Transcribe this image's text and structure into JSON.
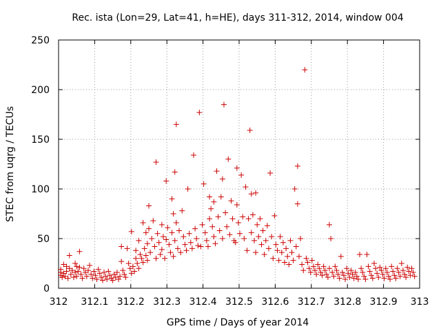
{
  "chart_data": {
    "type": "scatter",
    "title": "Rec. ista (Lon=29, Lat=41, h=HE), days 311-312, 2014, window 004",
    "xlabel": "GPS time / Days of year 2014",
    "ylabel": "STEC from uqrg / TECUs",
    "xlim": [
      312,
      313
    ],
    "ylim": [
      0,
      250
    ],
    "x_ticks": [
      312,
      312.1,
      312.2,
      312.3,
      312.4,
      312.5,
      312.6,
      312.7,
      312.8,
      312.9,
      313
    ],
    "x_tick_labels": [
      "312",
      "312.1",
      "312.2",
      "312.3",
      "312.4",
      "312.5",
      "312.6",
      "312.7",
      "312.8",
      "312.9",
      "313"
    ],
    "y_ticks": [
      0,
      50,
      100,
      150,
      200,
      250
    ],
    "y_tick_labels": [
      "0",
      "50",
      "100",
      "150",
      "200",
      "250"
    ],
    "marker": "plus",
    "color": "#cc0000",
    "grid": true,
    "series": [
      {
        "name": "STEC",
        "points": [
          [
            312.006,
            19
          ],
          [
            312.006,
            16
          ],
          [
            312.006,
            13
          ],
          [
            312.01,
            11
          ],
          [
            312.014,
            24
          ],
          [
            312.014,
            15
          ],
          [
            312.018,
            12
          ],
          [
            312.022,
            22
          ],
          [
            312.022,
            17
          ],
          [
            312.026,
            10
          ],
          [
            312.03,
            33
          ],
          [
            312.03,
            20
          ],
          [
            312.034,
            14
          ],
          [
            312.038,
            18
          ],
          [
            312.042,
            11
          ],
          [
            312.046,
            25
          ],
          [
            312.046,
            16
          ],
          [
            312.05,
            22
          ],
          [
            312.05,
            12
          ],
          [
            312.054,
            17
          ],
          [
            312.058,
            37
          ],
          [
            312.058,
            21
          ],
          [
            312.062,
            14
          ],
          [
            312.066,
            10
          ],
          [
            312.07,
            20
          ],
          [
            312.074,
            16
          ],
          [
            312.078,
            12
          ],
          [
            312.082,
            18
          ],
          [
            312.086,
            23
          ],
          [
            312.09,
            14
          ],
          [
            312.094,
            10
          ],
          [
            312.098,
            17
          ],
          [
            312.102,
            13
          ],
          [
            312.106,
            9
          ],
          [
            312.11,
            19
          ],
          [
            312.114,
            15
          ],
          [
            312.118,
            11
          ],
          [
            312.122,
            8
          ],
          [
            312.126,
            16
          ],
          [
            312.13,
            12
          ],
          [
            312.134,
            9
          ],
          [
            312.138,
            17
          ],
          [
            312.142,
            13
          ],
          [
            312.146,
            10
          ],
          [
            312.15,
            8
          ],
          [
            312.154,
            14
          ],
          [
            312.158,
            11
          ],
          [
            312.162,
            16
          ],
          [
            312.166,
            9
          ],
          [
            312.17,
            12
          ],
          [
            312.174,
            27
          ],
          [
            312.174,
            42
          ],
          [
            312.178,
            18
          ],
          [
            312.182,
            14
          ],
          [
            312.186,
            11
          ],
          [
            312.19,
            40
          ],
          [
            312.194,
            25
          ],
          [
            312.198,
            20
          ],
          [
            312.202,
            57
          ],
          [
            312.202,
            15
          ],
          [
            312.206,
            22
          ],
          [
            312.21,
            17
          ],
          [
            312.214,
            38
          ],
          [
            312.214,
            30
          ],
          [
            312.218,
            25
          ],
          [
            312.222,
            48
          ],
          [
            312.222,
            20
          ],
          [
            312.226,
            34
          ],
          [
            312.23,
            30
          ],
          [
            312.234,
            66
          ],
          [
            312.234,
            26
          ],
          [
            312.238,
            40
          ],
          [
            312.242,
            56
          ],
          [
            312.242,
            33
          ],
          [
            312.246,
            45
          ],
          [
            312.246,
            28
          ],
          [
            312.25,
            83
          ],
          [
            312.25,
            60
          ],
          [
            312.254,
            36
          ],
          [
            312.258,
            50
          ],
          [
            312.262,
            68
          ],
          [
            312.266,
            42
          ],
          [
            312.27,
            127
          ],
          [
            312.27,
            30
          ],
          [
            312.274,
            55
          ],
          [
            312.278,
            46
          ],
          [
            312.282,
            34
          ],
          [
            312.286,
            64
          ],
          [
            312.286,
            39
          ],
          [
            312.29,
            52
          ],
          [
            312.294,
            30
          ],
          [
            312.298,
            108
          ],
          [
            312.298,
            49
          ],
          [
            312.302,
            61
          ],
          [
            312.306,
            44
          ],
          [
            312.31,
            36
          ],
          [
            312.314,
            90
          ],
          [
            312.314,
            56
          ],
          [
            312.318,
            75
          ],
          [
            312.318,
            32
          ],
          [
            312.322,
            117
          ],
          [
            312.322,
            48
          ],
          [
            312.326,
            165
          ],
          [
            312.326,
            66
          ],
          [
            312.33,
            40
          ],
          [
            312.334,
            58
          ],
          [
            312.338,
            36
          ],
          [
            312.342,
            78
          ],
          [
            312.346,
            52
          ],
          [
            312.35,
            44
          ],
          [
            312.354,
            38
          ],
          [
            312.358,
            100
          ],
          [
            312.362,
            55
          ],
          [
            312.366,
            46
          ],
          [
            312.37,
            40
          ],
          [
            312.374,
            134
          ],
          [
            312.378,
            60
          ],
          [
            312.382,
            50
          ],
          [
            312.386,
            43
          ],
          [
            312.39,
            177
          ],
          [
            312.394,
            42
          ],
          [
            312.398,
            64
          ],
          [
            312.402,
            105
          ],
          [
            312.406,
            56
          ],
          [
            312.41,
            48
          ],
          [
            312.414,
            42
          ],
          [
            312.418,
            92
          ],
          [
            312.418,
            70
          ],
          [
            312.422,
            80
          ],
          [
            312.426,
            62
          ],
          [
            312.43,
            87
          ],
          [
            312.43,
            52
          ],
          [
            312.434,
            45
          ],
          [
            312.438,
            118
          ],
          [
            312.442,
            72
          ],
          [
            312.446,
            58
          ],
          [
            312.45,
            92
          ],
          [
            312.454,
            110
          ],
          [
            312.454,
            50
          ],
          [
            312.458,
            185
          ],
          [
            312.462,
            76
          ],
          [
            312.466,
            62
          ],
          [
            312.47,
            130
          ],
          [
            312.474,
            54
          ],
          [
            312.478,
            88
          ],
          [
            312.482,
            70
          ],
          [
            312.486,
            48
          ],
          [
            312.49,
            46
          ],
          [
            312.494,
            121
          ],
          [
            312.494,
            84
          ],
          [
            312.498,
            66
          ],
          [
            312.502,
            55
          ],
          [
            312.506,
            114
          ],
          [
            312.51,
            72
          ],
          [
            312.514,
            50
          ],
          [
            312.518,
            102
          ],
          [
            312.522,
            38
          ],
          [
            312.526,
            70
          ],
          [
            312.53,
            159
          ],
          [
            312.534,
            95
          ],
          [
            312.534,
            56
          ],
          [
            312.538,
            74
          ],
          [
            312.542,
            48
          ],
          [
            312.546,
            96
          ],
          [
            312.546,
            36
          ],
          [
            312.55,
            64
          ],
          [
            312.554,
            52
          ],
          [
            312.558,
            70
          ],
          [
            312.562,
            44
          ],
          [
            312.566,
            58
          ],
          [
            312.57,
            34
          ],
          [
            312.574,
            48
          ],
          [
            312.578,
            63
          ],
          [
            312.582,
            40
          ],
          [
            312.586,
            116
          ],
          [
            312.59,
            52
          ],
          [
            312.594,
            30
          ],
          [
            312.598,
            73
          ],
          [
            312.602,
            44
          ],
          [
            312.606,
            38
          ],
          [
            312.61,
            28
          ],
          [
            312.614,
            52
          ],
          [
            312.618,
            36
          ],
          [
            312.622,
            46
          ],
          [
            312.626,
            26
          ],
          [
            312.63,
            40
          ],
          [
            312.634,
            32
          ],
          [
            312.638,
            24
          ],
          [
            312.642,
            48
          ],
          [
            312.646,
            36
          ],
          [
            312.65,
            28
          ],
          [
            312.654,
            100
          ],
          [
            312.658,
            42
          ],
          [
            312.662,
            123
          ],
          [
            312.662,
            85
          ],
          [
            312.666,
            32
          ],
          [
            312.67,
            50
          ],
          [
            312.674,
            24
          ],
          [
            312.678,
            18
          ],
          [
            312.682,
            220
          ],
          [
            312.686,
            30
          ],
          [
            312.69,
            26
          ],
          [
            312.694,
            20
          ],
          [
            312.698,
            16
          ],
          [
            312.702,
            28
          ],
          [
            312.706,
            22
          ],
          [
            312.71,
            18
          ],
          [
            312.714,
            14
          ],
          [
            312.718,
            24
          ],
          [
            312.722,
            20
          ],
          [
            312.726,
            16
          ],
          [
            312.73,
            13
          ],
          [
            312.734,
            22
          ],
          [
            312.738,
            18
          ],
          [
            312.742,
            14
          ],
          [
            312.746,
            11
          ],
          [
            312.75,
            64
          ],
          [
            312.75,
            20
          ],
          [
            312.754,
            50
          ],
          [
            312.758,
            16
          ],
          [
            312.762,
            12
          ],
          [
            312.766,
            22
          ],
          [
            312.77,
            18
          ],
          [
            312.774,
            14
          ],
          [
            312.778,
            10
          ],
          [
            312.782,
            32
          ],
          [
            312.786,
            16
          ],
          [
            312.79,
            13
          ],
          [
            312.794,
            9
          ],
          [
            312.798,
            20
          ],
          [
            312.802,
            15
          ],
          [
            312.806,
            11
          ],
          [
            312.81,
            18
          ],
          [
            312.814,
            14
          ],
          [
            312.818,
            10
          ],
          [
            312.822,
            16
          ],
          [
            312.826,
            12
          ],
          [
            312.83,
            9
          ],
          [
            312.834,
            34
          ],
          [
            312.838,
            20
          ],
          [
            312.842,
            16
          ],
          [
            312.846,
            12
          ],
          [
            312.85,
            9
          ],
          [
            312.854,
            34
          ],
          [
            312.858,
            22
          ],
          [
            312.862,
            17
          ],
          [
            312.866,
            13
          ],
          [
            312.87,
            10
          ],
          [
            312.874,
            25
          ],
          [
            312.878,
            20
          ],
          [
            312.882,
            15
          ],
          [
            312.886,
            11
          ],
          [
            312.89,
            21
          ],
          [
            312.894,
            18
          ],
          [
            312.898,
            14
          ],
          [
            312.902,
            10
          ],
          [
            312.906,
            20
          ],
          [
            312.91,
            16
          ],
          [
            312.914,
            12
          ],
          [
            312.918,
            9
          ],
          [
            312.922,
            22
          ],
          [
            312.926,
            17
          ],
          [
            312.93,
            13
          ],
          [
            312.934,
            10
          ],
          [
            312.938,
            20
          ],
          [
            312.942,
            16
          ],
          [
            312.946,
            12
          ],
          [
            312.95,
            25
          ],
          [
            312.954,
            18
          ],
          [
            312.958,
            14
          ],
          [
            312.962,
            11
          ],
          [
            312.966,
            21
          ],
          [
            312.97,
            17
          ],
          [
            312.974,
            13
          ],
          [
            312.978,
            20
          ],
          [
            312.982,
            16
          ],
          [
            312.986,
            12
          ]
        ]
      }
    ]
  }
}
